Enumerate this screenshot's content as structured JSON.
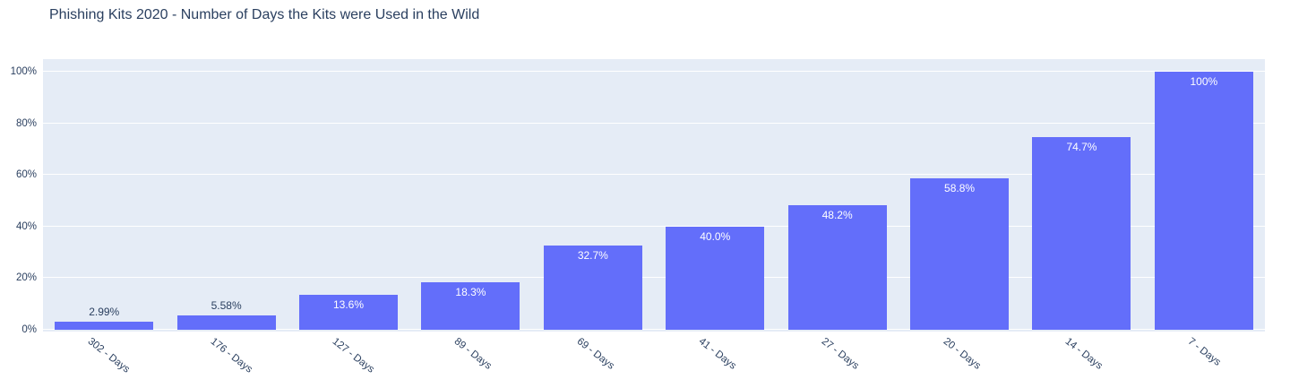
{
  "title": "Phishing Kits 2020 - Number of Days the Kits were Used in the Wild",
  "chart_data": {
    "type": "bar",
    "title": "Phishing Kits 2020 - Number of Days the Kits were Used in the Wild",
    "categories": [
      "302 - Days",
      "176 - Days",
      "127 - Days",
      "89 - Days",
      "69 - Days",
      "41 - Days",
      "27 - Days",
      "20 - Days",
      "14 - Days",
      "7 - Days"
    ],
    "values": [
      2.99,
      5.58,
      13.6,
      18.3,
      32.7,
      40.0,
      48.2,
      58.8,
      74.7,
      100
    ],
    "bar_labels": [
      "2.99%",
      "5.58%",
      "13.6%",
      "18.3%",
      "32.7%",
      "40.0%",
      "48.2%",
      "58.8%",
      "74.7%",
      "100%"
    ],
    "xlabel": "",
    "ylabel": "",
    "ylim": [
      0,
      100
    ],
    "y_ticks": [
      {
        "value": 0,
        "label": "0%"
      },
      {
        "value": 20,
        "label": "20%"
      },
      {
        "value": 40,
        "label": "40%"
      },
      {
        "value": 60,
        "label": "60%"
      },
      {
        "value": 80,
        "label": "80%"
      },
      {
        "value": 100,
        "label": "100%"
      }
    ],
    "grid": true,
    "legend": "none",
    "inside_label_threshold": 10,
    "colors": {
      "bar": "#636EFA",
      "plot_background": "#E5ECF6",
      "gridline": "#FFFFFF",
      "text": "#2a3f5f",
      "label_inside": "#FFFFFF"
    }
  }
}
